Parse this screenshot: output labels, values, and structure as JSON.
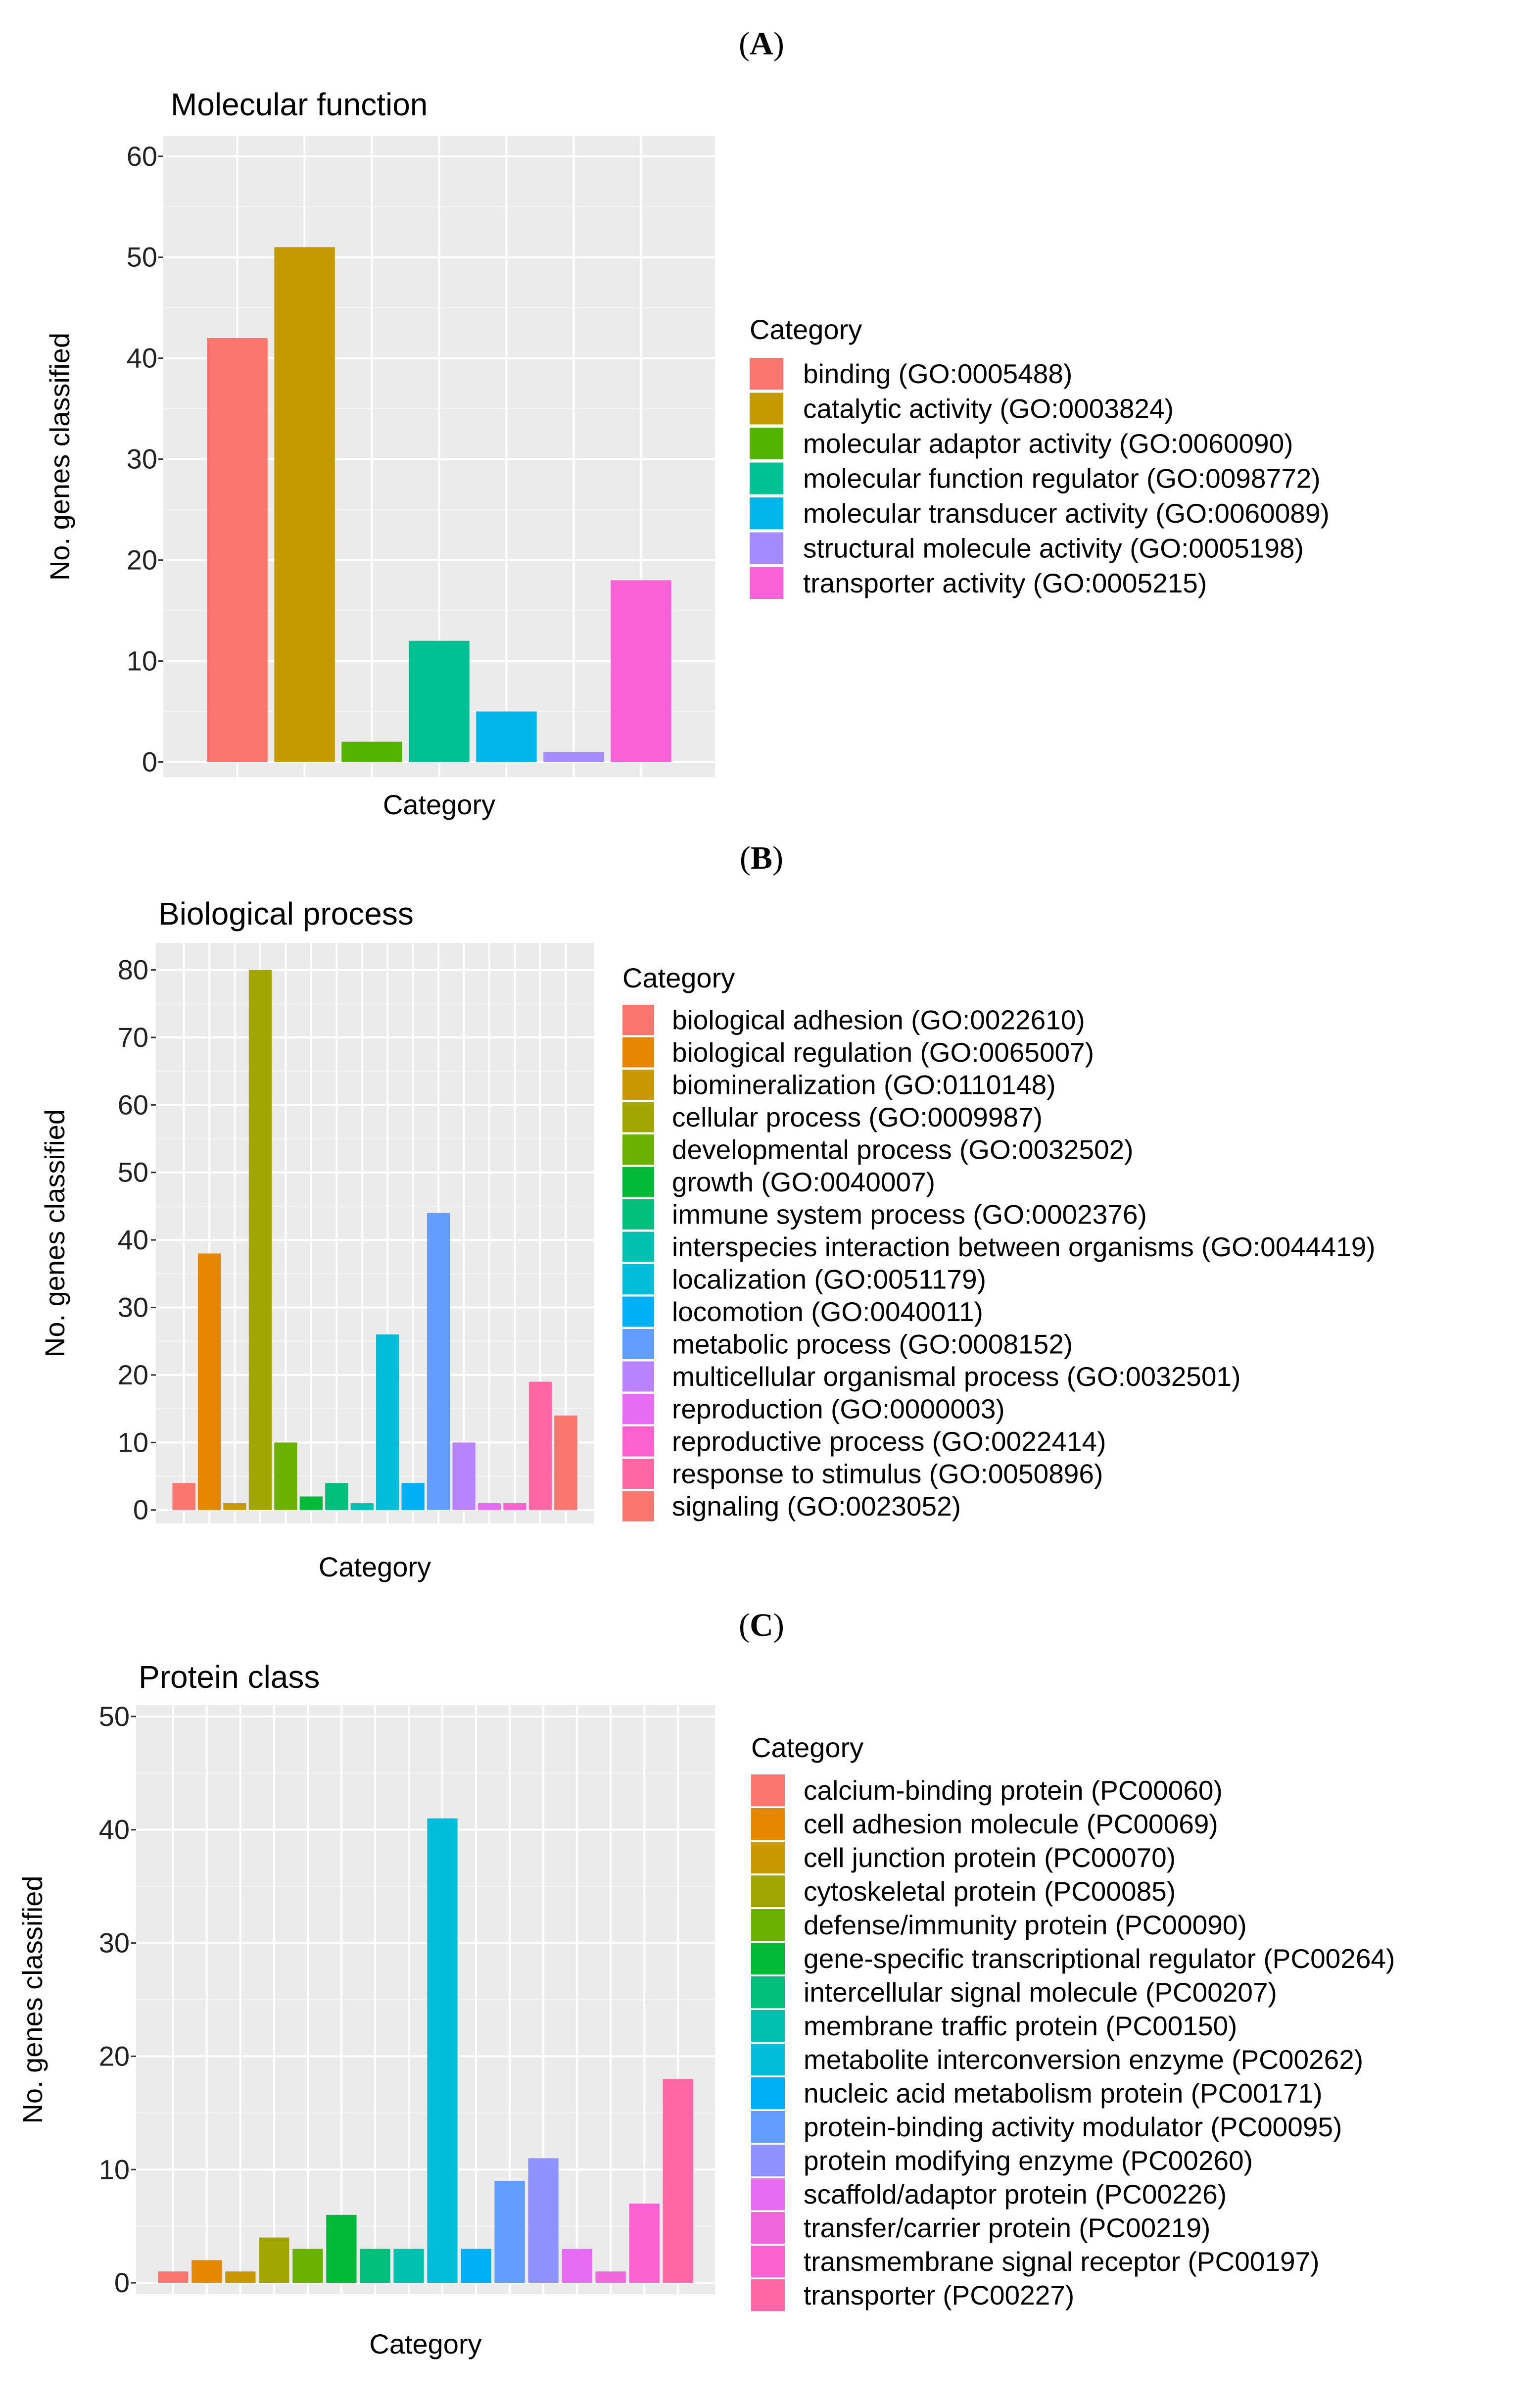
{
  "chart_data": [
    {
      "panel_label": "A",
      "type": "bar",
      "title": "Molecular function",
      "xlabel": "Category",
      "ylabel": "No. genes classified",
      "ylim": [
        -1.5,
        62
      ],
      "yticks": [
        0,
        10,
        20,
        30,
        40,
        50,
        60
      ],
      "legend_title": "Category",
      "legend_position": "right",
      "grid": true,
      "categories": [
        "binding (GO:0005488)",
        "catalytic activity (GO:0003824)",
        "molecular adaptor activity (GO:0060090)",
        "molecular function regulator (GO:0098772)",
        "molecular transducer activity (GO:0060089)",
        "structural molecule activity (GO:0005198)",
        "transporter activity (GO:0005215)"
      ],
      "values": [
        42,
        51,
        2,
        12,
        5,
        1,
        18
      ],
      "colors": [
        "#F8766D",
        "#C49A00",
        "#53B400",
        "#00C094",
        "#00B6EB",
        "#A58AFF",
        "#FB61D7"
      ]
    },
    {
      "panel_label": "B",
      "type": "bar",
      "title": "Biological process",
      "xlabel": "Category",
      "ylabel": "No. genes classified",
      "ylim": [
        -2,
        84
      ],
      "yticks": [
        0,
        10,
        20,
        30,
        40,
        50,
        60,
        70,
        80
      ],
      "legend_title": "Category",
      "legend_position": "right",
      "grid": true,
      "categories": [
        "biological adhesion (GO:0022610)",
        "biological regulation (GO:0065007)",
        "biomineralization (GO:0110148)",
        "cellular process (GO:0009987)",
        "developmental process (GO:0032502)",
        "growth (GO:0040007)",
        "immune system process (GO:0002376)",
        "interspecies interaction between organisms (GO:0044419)",
        "localization (GO:0051179)",
        "locomotion (GO:0040011)",
        "metabolic process (GO:0008152)",
        "multicellular organismal process (GO:0032501)",
        "reproduction (GO:0000003)",
        "reproductive process (GO:0022414)",
        "response to stimulus (GO:0050896)",
        "signaling (GO:0023052)"
      ],
      "values": [
        4,
        38,
        1,
        80,
        10,
        2,
        4,
        1,
        26,
        4,
        44,
        10,
        1,
        1,
        19,
        14
      ],
      "colors": [
        "#F8766D",
        "#E58700",
        "#C99800",
        "#A3A500",
        "#6BB100",
        "#00BA38",
        "#00BF7D",
        "#00C0AF",
        "#00BCD8",
        "#00B0F6",
        "#619CFF",
        "#B983FF",
        "#E76BF3",
        "#FD61D1",
        "#FF67A4",
        "#F8766D"
      ]
    },
    {
      "panel_label": "C",
      "type": "bar",
      "title": "Protein class",
      "xlabel": "Category",
      "ylabel": "No. genes classified",
      "ylim": [
        -1,
        51
      ],
      "yticks": [
        0,
        10,
        20,
        30,
        40,
        50
      ],
      "legend_title": "Category",
      "legend_position": "right",
      "grid": true,
      "categories": [
        "calcium-binding protein (PC00060)",
        "cell adhesion molecule (PC00069)",
        "cell junction protein (PC00070)",
        "cytoskeletal protein (PC00085)",
        "defense/immunity protein (PC00090)",
        "gene-specific transcriptional regulator (PC00264)",
        "intercellular signal molecule (PC00207)",
        "membrane traffic protein (PC00150)",
        "metabolite interconversion enzyme (PC00262)",
        "nucleic acid metabolism protein (PC00171)",
        "protein-binding activity modulator (PC00095)",
        "protein modifying enzyme (PC00260)",
        "scaffold/adaptor protein (PC00226)",
        "transfer/carrier protein (PC00219)",
        "transmembrane signal receptor (PC00197)",
        "transporter (PC00227)"
      ],
      "values": [
        1,
        2,
        1,
        4,
        3,
        6,
        3,
        3,
        41,
        3,
        9,
        11,
        3,
        1,
        7,
        18
      ],
      "colors": [
        "#F8766D",
        "#E58700",
        "#C99800",
        "#A3A500",
        "#6BB100",
        "#00BA38",
        "#00BF7D",
        "#00C0AF",
        "#00BCD8",
        "#00B0F6",
        "#619CFF",
        "#8F91FF",
        "#E76BF3",
        "#F067DC",
        "#FD61D1",
        "#FF67A4"
      ]
    }
  ]
}
